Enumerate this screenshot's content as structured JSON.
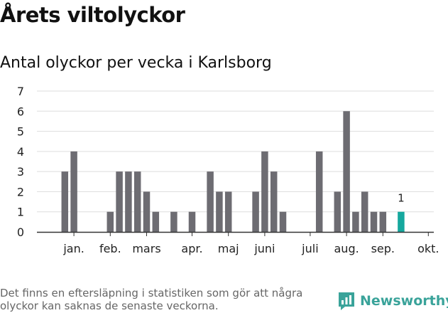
{
  "title": "Årets viltolyckor",
  "subtitle": "Antal olyckor per vecka i Karlsborg",
  "footnote": "Det finns en eftersläpning i statistiken som gör att några olyckor kan saknas de senaste veckorna.",
  "brand": "Newsworthy",
  "colors": {
    "bar": "#6d6c72",
    "highlight": "#16a89e",
    "brand": "#3aa39a",
    "grid": "#dddddd"
  },
  "chart_data": {
    "type": "bar",
    "ylim": [
      0,
      7
    ],
    "yticks": [
      0,
      1,
      2,
      3,
      4,
      5,
      6,
      7
    ],
    "x": [
      1,
      2,
      3,
      4,
      5,
      6,
      7,
      8,
      9,
      10,
      11,
      12,
      13,
      14,
      15,
      16,
      17,
      18,
      19,
      20,
      21,
      22,
      23,
      24,
      25,
      26,
      27,
      28,
      29,
      30,
      31,
      32,
      33,
      34,
      35,
      36,
      37,
      38,
      39,
      40
    ],
    "values": [
      0,
      3,
      4,
      0,
      0,
      0,
      1,
      3,
      3,
      3,
      2,
      1,
      0,
      1,
      0,
      1,
      0,
      3,
      2,
      2,
      0,
      0,
      2,
      4,
      3,
      1,
      0,
      0,
      0,
      4,
      0,
      2,
      6,
      1,
      2,
      1,
      1,
      0,
      1,
      0
    ],
    "highlight_index": 38,
    "highlight_label": "1",
    "month_labels": [
      {
        "label": "jan.",
        "x": 3
      },
      {
        "label": "feb.",
        "x": 7
      },
      {
        "label": "mars",
        "x": 11
      },
      {
        "label": "apr.",
        "x": 16
      },
      {
        "label": "maj",
        "x": 20
      },
      {
        "label": "juni",
        "x": 24
      },
      {
        "label": "juli",
        "x": 29
      },
      {
        "label": "aug.",
        "x": 33
      },
      {
        "label": "sep.",
        "x": 37
      },
      {
        "label": "okt.",
        "x": 42
      }
    ]
  }
}
